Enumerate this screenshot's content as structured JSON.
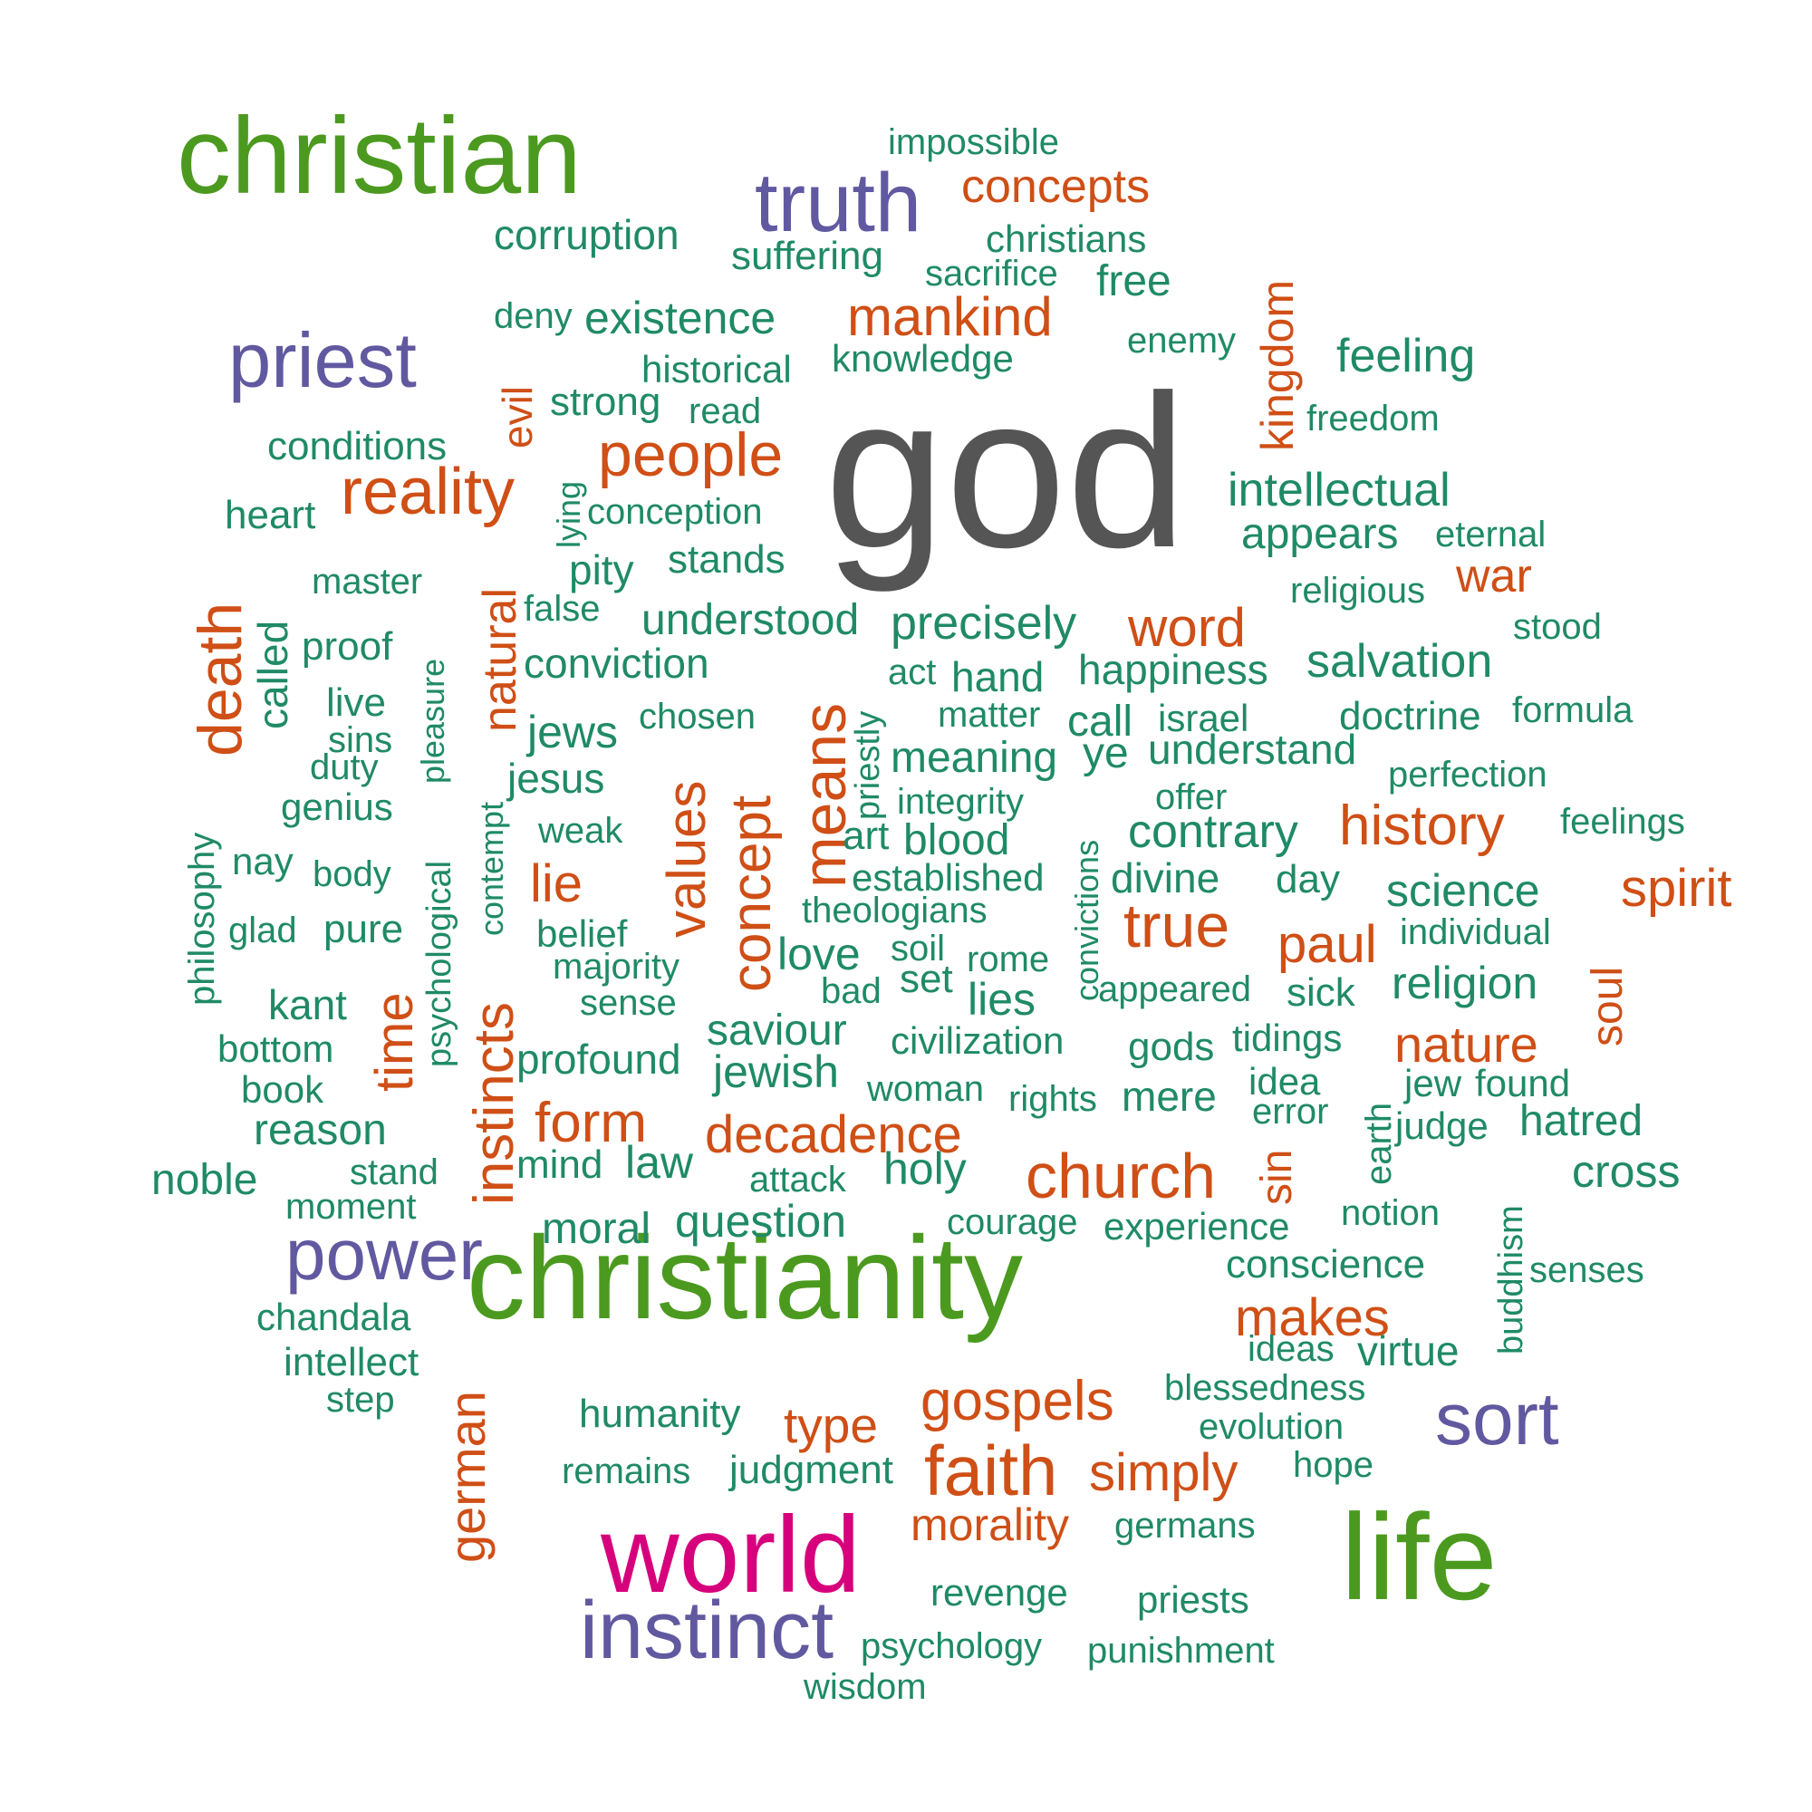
{
  "colors": {
    "gray": "#555555",
    "green": "#4b9a1f",
    "purple": "#6159a0",
    "orange": "#cf4f16",
    "teal": "#1f8a66",
    "magenta": "#d7007c"
  },
  "words": [
    {
      "text": "god",
      "color": "gray"
    },
    {
      "text": "christianity",
      "color": "green"
    },
    {
      "text": "christian",
      "color": "green"
    },
    {
      "text": "life",
      "color": "green"
    },
    {
      "text": "world",
      "color": "magenta"
    },
    {
      "text": "instinct",
      "color": "purple"
    },
    {
      "text": "truth",
      "color": "purple"
    },
    {
      "text": "priest",
      "color": "purple"
    },
    {
      "text": "power",
      "color": "purple"
    },
    {
      "text": "sort",
      "color": "purple"
    },
    {
      "text": "concepts",
      "color": "orange"
    },
    {
      "text": "mankind",
      "color": "orange"
    },
    {
      "text": "people",
      "color": "orange"
    },
    {
      "text": "reality",
      "color": "orange"
    },
    {
      "text": "word",
      "color": "orange"
    },
    {
      "text": "war",
      "color": "orange"
    },
    {
      "text": "history",
      "color": "orange"
    },
    {
      "text": "spirit",
      "color": "orange"
    },
    {
      "text": "true",
      "color": "orange"
    },
    {
      "text": "paul",
      "color": "orange"
    },
    {
      "text": "nature",
      "color": "orange"
    },
    {
      "text": "lie",
      "color": "orange"
    },
    {
      "text": "form",
      "color": "orange"
    },
    {
      "text": "decadence",
      "color": "orange"
    },
    {
      "text": "church",
      "color": "orange"
    },
    {
      "text": "makes",
      "color": "orange"
    },
    {
      "text": "gospels",
      "color": "orange"
    },
    {
      "text": "type",
      "color": "orange"
    },
    {
      "text": "faith",
      "color": "orange"
    },
    {
      "text": "simply",
      "color": "orange"
    },
    {
      "text": "morality",
      "color": "orange"
    },
    {
      "text": "kingdom",
      "color": "orange"
    },
    {
      "text": "evil",
      "color": "orange"
    },
    {
      "text": "death",
      "color": "orange"
    },
    {
      "text": "natural",
      "color": "orange"
    },
    {
      "text": "means",
      "color": "orange"
    },
    {
      "text": "values",
      "color": "orange"
    },
    {
      "text": "concept",
      "color": "orange"
    },
    {
      "text": "instincts",
      "color": "orange"
    },
    {
      "text": "time",
      "color": "orange"
    },
    {
      "text": "german",
      "color": "orange"
    },
    {
      "text": "soul",
      "color": "orange"
    },
    {
      "text": "sin",
      "color": "orange"
    },
    {
      "text": "impossible",
      "color": "teal"
    },
    {
      "text": "corruption",
      "color": "teal"
    },
    {
      "text": "suffering",
      "color": "teal"
    },
    {
      "text": "christians",
      "color": "teal"
    },
    {
      "text": "sacrifice",
      "color": "teal"
    },
    {
      "text": "free",
      "color": "teal"
    },
    {
      "text": "deny",
      "color": "teal"
    },
    {
      "text": "existence",
      "color": "teal"
    },
    {
      "text": "enemy",
      "color": "teal"
    },
    {
      "text": "feeling",
      "color": "teal"
    },
    {
      "text": "historical",
      "color": "teal"
    },
    {
      "text": "knowledge",
      "color": "teal"
    },
    {
      "text": "strong",
      "color": "teal"
    },
    {
      "text": "read",
      "color": "teal"
    },
    {
      "text": "freedom",
      "color": "teal"
    },
    {
      "text": "conditions",
      "color": "teal"
    },
    {
      "text": "conception",
      "color": "teal"
    },
    {
      "text": "intellectual",
      "color": "teal"
    },
    {
      "text": "heart",
      "color": "teal"
    },
    {
      "text": "appears",
      "color": "teal"
    },
    {
      "text": "eternal",
      "color": "teal"
    },
    {
      "text": "pity",
      "color": "teal"
    },
    {
      "text": "stands",
      "color": "teal"
    },
    {
      "text": "master",
      "color": "teal"
    },
    {
      "text": "religious",
      "color": "teal"
    },
    {
      "text": "false",
      "color": "teal"
    },
    {
      "text": "understood",
      "color": "teal"
    },
    {
      "text": "precisely",
      "color": "teal"
    },
    {
      "text": "stood",
      "color": "teal"
    },
    {
      "text": "proof",
      "color": "teal"
    },
    {
      "text": "conviction",
      "color": "teal"
    },
    {
      "text": "act",
      "color": "teal"
    },
    {
      "text": "hand",
      "color": "teal"
    },
    {
      "text": "happiness",
      "color": "teal"
    },
    {
      "text": "salvation",
      "color": "teal"
    },
    {
      "text": "live",
      "color": "teal"
    },
    {
      "text": "chosen",
      "color": "teal"
    },
    {
      "text": "matter",
      "color": "teal"
    },
    {
      "text": "call",
      "color": "teal"
    },
    {
      "text": "israel",
      "color": "teal"
    },
    {
      "text": "doctrine",
      "color": "teal"
    },
    {
      "text": "formula",
      "color": "teal"
    },
    {
      "text": "sins",
      "color": "teal"
    },
    {
      "text": "jews",
      "color": "teal"
    },
    {
      "text": "meaning",
      "color": "teal"
    },
    {
      "text": "ye",
      "color": "teal"
    },
    {
      "text": "understand",
      "color": "teal"
    },
    {
      "text": "duty",
      "color": "teal"
    },
    {
      "text": "jesus",
      "color": "teal"
    },
    {
      "text": "perfection",
      "color": "teal"
    },
    {
      "text": "genius",
      "color": "teal"
    },
    {
      "text": "integrity",
      "color": "teal"
    },
    {
      "text": "offer",
      "color": "teal"
    },
    {
      "text": "weak",
      "color": "teal"
    },
    {
      "text": "art",
      "color": "teal"
    },
    {
      "text": "blood",
      "color": "teal"
    },
    {
      "text": "contrary",
      "color": "teal"
    },
    {
      "text": "feelings",
      "color": "teal"
    },
    {
      "text": "nay",
      "color": "teal"
    },
    {
      "text": "body",
      "color": "teal"
    },
    {
      "text": "established",
      "color": "teal"
    },
    {
      "text": "divine",
      "color": "teal"
    },
    {
      "text": "day",
      "color": "teal"
    },
    {
      "text": "theologians",
      "color": "teal"
    },
    {
      "text": "science",
      "color": "teal"
    },
    {
      "text": "glad",
      "color": "teal"
    },
    {
      "text": "pure",
      "color": "teal"
    },
    {
      "text": "belief",
      "color": "teal"
    },
    {
      "text": "individual",
      "color": "teal"
    },
    {
      "text": "majority",
      "color": "teal"
    },
    {
      "text": "love",
      "color": "teal"
    },
    {
      "text": "soil",
      "color": "teal"
    },
    {
      "text": "rome",
      "color": "teal"
    },
    {
      "text": "set",
      "color": "teal"
    },
    {
      "text": "bad",
      "color": "teal"
    },
    {
      "text": "lies",
      "color": "teal"
    },
    {
      "text": "appeared",
      "color": "teal"
    },
    {
      "text": "sick",
      "color": "teal"
    },
    {
      "text": "religion",
      "color": "teal"
    },
    {
      "text": "sense",
      "color": "teal"
    },
    {
      "text": "kant",
      "color": "teal"
    },
    {
      "text": "saviour",
      "color": "teal"
    },
    {
      "text": "civilization",
      "color": "teal"
    },
    {
      "text": "gods",
      "color": "teal"
    },
    {
      "text": "tidings",
      "color": "teal"
    },
    {
      "text": "bottom",
      "color": "teal"
    },
    {
      "text": "profound",
      "color": "teal"
    },
    {
      "text": "jewish",
      "color": "teal"
    },
    {
      "text": "woman",
      "color": "teal"
    },
    {
      "text": "rights",
      "color": "teal"
    },
    {
      "text": "mere",
      "color": "teal"
    },
    {
      "text": "idea",
      "color": "teal"
    },
    {
      "text": "jew",
      "color": "teal"
    },
    {
      "text": "found",
      "color": "teal"
    },
    {
      "text": "book",
      "color": "teal"
    },
    {
      "text": "error",
      "color": "teal"
    },
    {
      "text": "judge",
      "color": "teal"
    },
    {
      "text": "hatred",
      "color": "teal"
    },
    {
      "text": "reason",
      "color": "teal"
    },
    {
      "text": "mind",
      "color": "teal"
    },
    {
      "text": "law",
      "color": "teal"
    },
    {
      "text": "attack",
      "color": "teal"
    },
    {
      "text": "holy",
      "color": "teal"
    },
    {
      "text": "cross",
      "color": "teal"
    },
    {
      "text": "noble",
      "color": "teal"
    },
    {
      "text": "stand",
      "color": "teal"
    },
    {
      "text": "moment",
      "color": "teal"
    },
    {
      "text": "notion",
      "color": "teal"
    },
    {
      "text": "moral",
      "color": "teal"
    },
    {
      "text": "question",
      "color": "teal"
    },
    {
      "text": "courage",
      "color": "teal"
    },
    {
      "text": "experience",
      "color": "teal"
    },
    {
      "text": "conscience",
      "color": "teal"
    },
    {
      "text": "senses",
      "color": "teal"
    },
    {
      "text": "chandala",
      "color": "teal"
    },
    {
      "text": "ideas",
      "color": "teal"
    },
    {
      "text": "virtue",
      "color": "teal"
    },
    {
      "text": "intellect",
      "color": "teal"
    },
    {
      "text": "step",
      "color": "teal"
    },
    {
      "text": "blessedness",
      "color": "teal"
    },
    {
      "text": "humanity",
      "color": "teal"
    },
    {
      "text": "evolution",
      "color": "teal"
    },
    {
      "text": "remains",
      "color": "teal"
    },
    {
      "text": "judgment",
      "color": "teal"
    },
    {
      "text": "hope",
      "color": "teal"
    },
    {
      "text": "germans",
      "color": "teal"
    },
    {
      "text": "revenge",
      "color": "teal"
    },
    {
      "text": "priests",
      "color": "teal"
    },
    {
      "text": "psychology",
      "color": "teal"
    },
    {
      "text": "punishment",
      "color": "teal"
    },
    {
      "text": "wisdom",
      "color": "teal"
    },
    {
      "text": "lying",
      "color": "teal"
    },
    {
      "text": "called",
      "color": "teal"
    },
    {
      "text": "pleasure",
      "color": "teal"
    },
    {
      "text": "contempt",
      "color": "teal"
    },
    {
      "text": "priestly",
      "color": "teal"
    },
    {
      "text": "philosophy",
      "color": "teal"
    },
    {
      "text": "psychological",
      "color": "teal"
    },
    {
      "text": "convictions",
      "color": "teal"
    },
    {
      "text": "earth",
      "color": "teal"
    },
    {
      "text": "buddhism",
      "color": "teal"
    }
  ]
}
